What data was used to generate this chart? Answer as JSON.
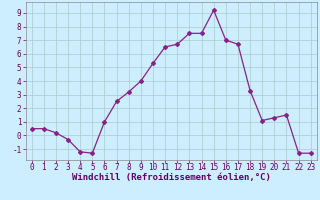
{
  "x": [
    0,
    1,
    2,
    3,
    4,
    5,
    6,
    7,
    8,
    9,
    10,
    11,
    12,
    13,
    14,
    15,
    16,
    17,
    18,
    19,
    20,
    21,
    22,
    23
  ],
  "y": [
    0.5,
    0.5,
    0.2,
    -0.3,
    -1.2,
    -1.3,
    1.0,
    2.5,
    3.2,
    4.0,
    5.3,
    6.5,
    6.7,
    7.5,
    7.5,
    9.2,
    7.0,
    6.7,
    3.3,
    1.1,
    1.3,
    1.5,
    -1.3,
    -1.3
  ],
  "line_color": "#882288",
  "marker": "D",
  "markersize": 2.0,
  "linewidth": 0.9,
  "bg_color": "#cceeff",
  "grid_color": "#aacccc",
  "xlabel": "Windchill (Refroidissement éolien,°C)",
  "xlabel_fontsize": 6.5,
  "tick_fontsize": 5.5,
  "ylim": [
    -1.8,
    9.8
  ],
  "yticks": [
    -1,
    0,
    1,
    2,
    3,
    4,
    5,
    6,
    7,
    8,
    9
  ],
  "xticks": [
    0,
    1,
    2,
    3,
    4,
    5,
    6,
    7,
    8,
    9,
    10,
    11,
    12,
    13,
    14,
    15,
    16,
    17,
    18,
    19,
    20,
    21,
    22,
    23
  ]
}
